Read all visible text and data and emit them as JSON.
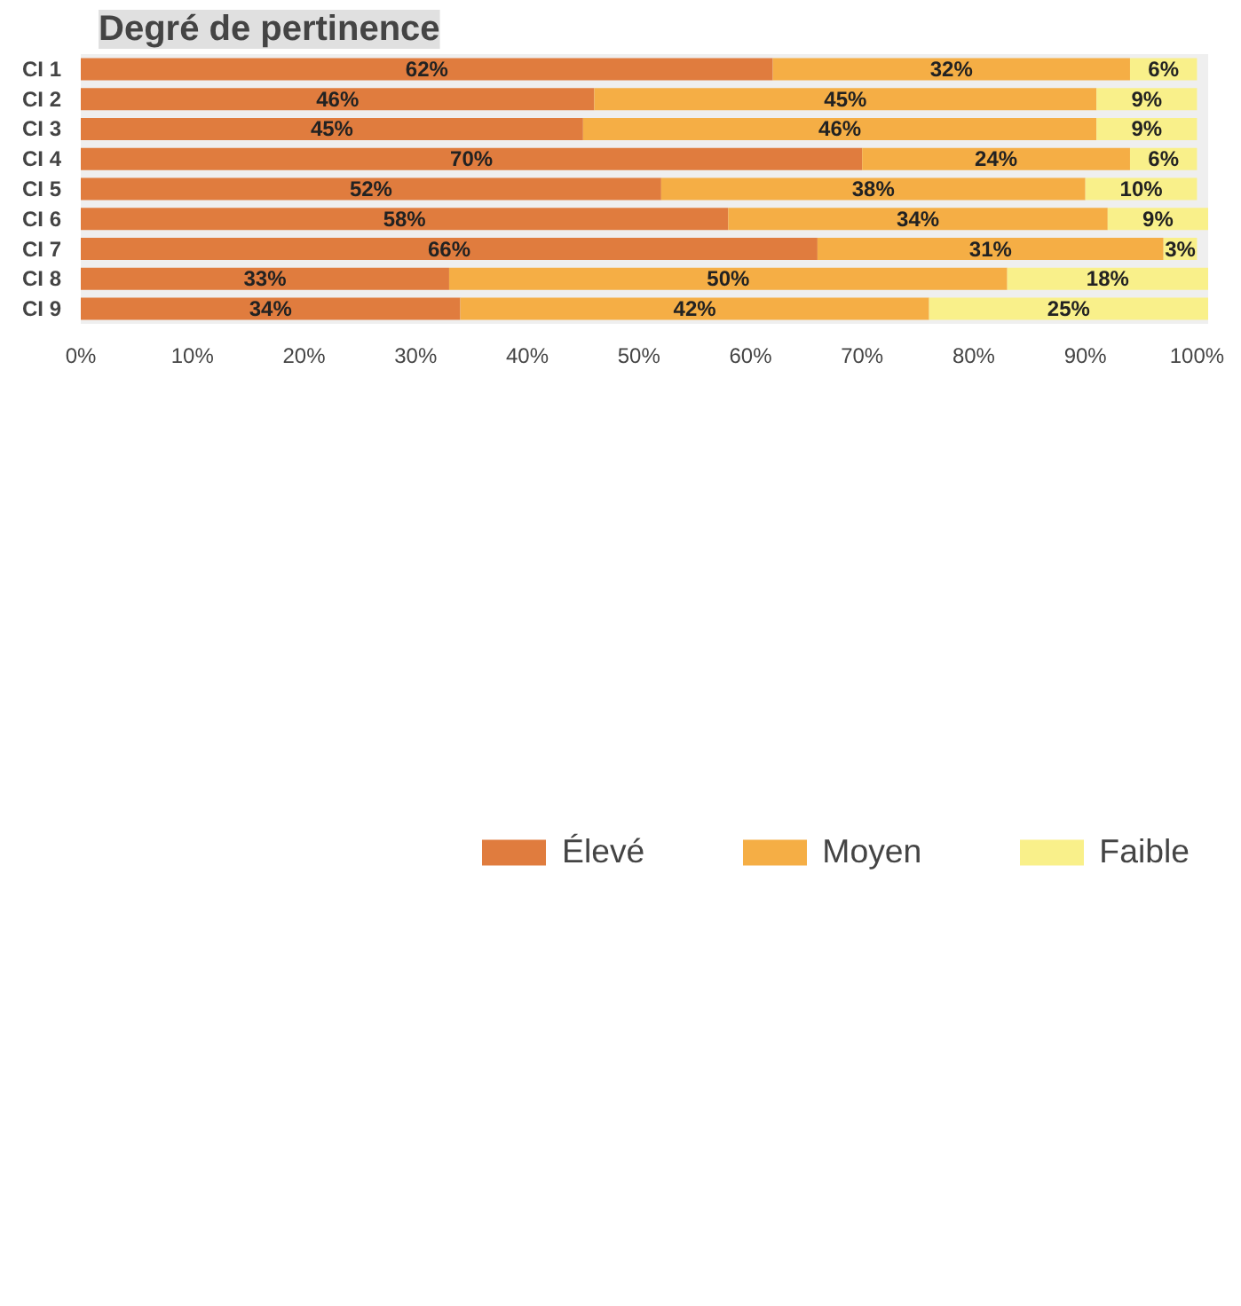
{
  "chart_data": {
    "type": "bar",
    "orientation": "horizontal",
    "stacked": true,
    "title": "Degré de pertinence",
    "categories": [
      "CI 1",
      "CI 2",
      "CI 3",
      "CI 4",
      "CI 5",
      "CI 6",
      "CI 7",
      "CI 8",
      "CI 9"
    ],
    "series": [
      {
        "name": "Élevé",
        "color": "#e07c3e",
        "values": [
          62,
          46,
          45,
          70,
          52,
          58,
          66,
          33,
          34
        ],
        "value_labels": [
          "62%",
          "46%",
          "45%",
          "70%",
          "52%",
          "58%",
          "66%",
          "33%",
          "34%"
        ]
      },
      {
        "name": "Moyen",
        "color": "#f5ae45",
        "values": [
          32,
          45,
          46,
          24,
          38,
          34,
          31,
          50,
          42
        ],
        "value_labels": [
          "32%",
          "45%",
          "46%",
          "24%",
          "38%",
          "34%",
          "31%",
          "50%",
          "42%"
        ]
      },
      {
        "name": "Faible",
        "color": "#f9f08a",
        "values": [
          6,
          9,
          9,
          6,
          10,
          9,
          3,
          18,
          25
        ],
        "value_labels": [
          "6%",
          "9%",
          "9%",
          "6%",
          "10%",
          "9%",
          "3%",
          "18%",
          "25%"
        ]
      }
    ],
    "xlim": [
      0,
      101
    ],
    "xticks": [
      {
        "value": 0,
        "label": "0%"
      },
      {
        "value": 10,
        "label": "10%"
      },
      {
        "value": 20,
        "label": "20%"
      },
      {
        "value": 30,
        "label": "30%"
      },
      {
        "value": 40,
        "label": "40%"
      },
      {
        "value": 50,
        "label": "50%"
      },
      {
        "value": 60,
        "label": "60%"
      },
      {
        "value": 70,
        "label": "70%"
      },
      {
        "value": 80,
        "label": "80%"
      },
      {
        "value": 90,
        "label": "90%"
      },
      {
        "value": 100,
        "label": "100%"
      }
    ],
    "grid": false,
    "legend": "bottom"
  }
}
